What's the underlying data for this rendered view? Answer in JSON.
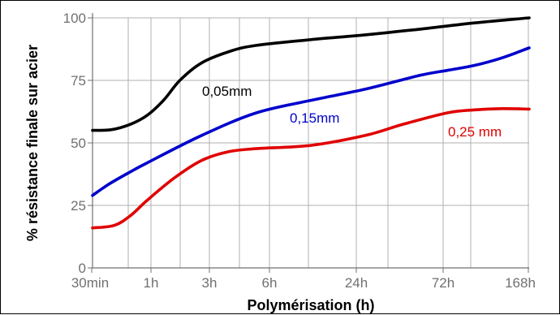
{
  "chart_data": {
    "type": "line",
    "xlabel": "Polymérisation (h)",
    "ylabel": "% résistance finale sur acier",
    "x_ticks": [
      "30min",
      "1h",
      "3h",
      "6h",
      "24h",
      "72h",
      "168h"
    ],
    "y_ticks": [
      0,
      25,
      50,
      75,
      100
    ],
    "ylim": [
      0,
      100
    ],
    "grid": true,
    "series": [
      {
        "name": "0,05mm",
        "color": "#000000",
        "points": [
          [
            0,
            55
          ],
          [
            0.35,
            55.3
          ],
          [
            0.7,
            57.5
          ],
          [
            1,
            61
          ],
          [
            1.3,
            67
          ],
          [
            1.6,
            75
          ],
          [
            2,
            82
          ],
          [
            2.5,
            86.5
          ],
          [
            3,
            89
          ],
          [
            4,
            91.3
          ],
          [
            5,
            93.2
          ],
          [
            6,
            95.5
          ],
          [
            7,
            98
          ],
          [
            8,
            100
          ]
        ]
      },
      {
        "name": "0,15mm",
        "color": "#0000cc",
        "points": [
          [
            0,
            29
          ],
          [
            0.3,
            33.5
          ],
          [
            0.7,
            38.5
          ],
          [
            1,
            42
          ],
          [
            2,
            53
          ],
          [
            3,
            62
          ],
          [
            4,
            67
          ],
          [
            5,
            71.5
          ],
          [
            6,
            77
          ],
          [
            6.5,
            79
          ],
          [
            7,
            81
          ],
          [
            7.5,
            84
          ],
          [
            8,
            88
          ]
        ]
      },
      {
        "name": "0,25 mm",
        "color": "#e00000",
        "points": [
          [
            0,
            16
          ],
          [
            0.4,
            17
          ],
          [
            0.7,
            21
          ],
          [
            1,
            27
          ],
          [
            1.5,
            36
          ],
          [
            2,
            43
          ],
          [
            2.5,
            46.5
          ],
          [
            3,
            47.7
          ],
          [
            4,
            49
          ],
          [
            5,
            53
          ],
          [
            5.7,
            57.5
          ],
          [
            6.5,
            62
          ],
          [
            7,
            63.2
          ],
          [
            7.5,
            63.7
          ],
          [
            8,
            63.5
          ]
        ]
      }
    ]
  }
}
